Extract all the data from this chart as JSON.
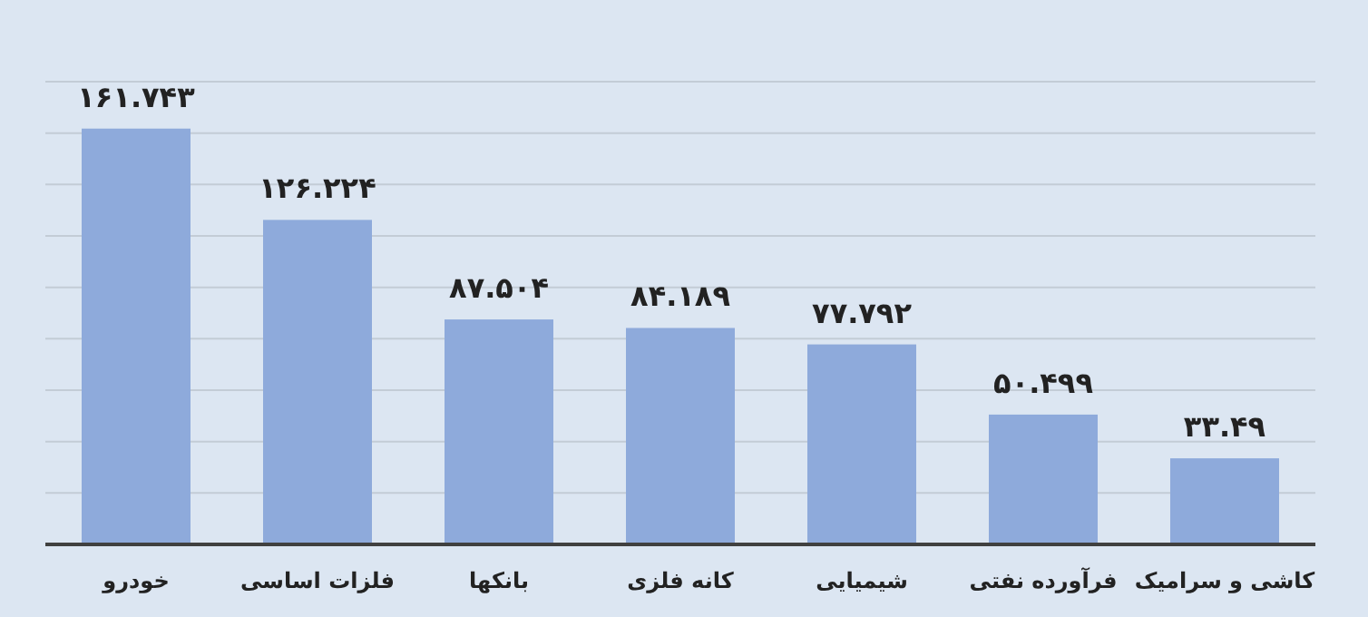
{
  "chart_data": {
    "type": "bar",
    "categories": [
      "خودرو",
      "فلزات اساسی",
      "بانکها",
      "کانه فلزی",
      "شیمیایی",
      "فرآورده نفتی",
      "کاشی و سرامیک"
    ],
    "values": [
      161.743,
      126.224,
      87.504,
      84.189,
      77.792,
      50.499,
      33.49
    ],
    "value_labels": [
      "۱۶۱.۷۴۳",
      "۱۲۶.۲۲۴",
      "۸۷.۵۰۴",
      "۸۴.۱۸۹",
      "۷۷.۷۹۲",
      "۵۰.۴۹۹",
      "۳۳.۴۹"
    ],
    "color": "#8eaadb",
    "ylim": [
      0,
      180
    ],
    "yticks": [
      {
        "value": 0,
        "label": null
      },
      {
        "value": 20,
        "label": null
      },
      {
        "value": 40,
        "label": null
      },
      {
        "value": 60,
        "label": null
      },
      {
        "value": 80,
        "label": null
      },
      {
        "value": 100,
        "label": null
      },
      {
        "value": 120,
        "label": null
      },
      {
        "value": 140,
        "label": null
      },
      {
        "value": 160,
        "label": null
      },
      {
        "value": 180,
        "label": null
      }
    ],
    "tick_labels": "x",
    "grid": "y"
  }
}
